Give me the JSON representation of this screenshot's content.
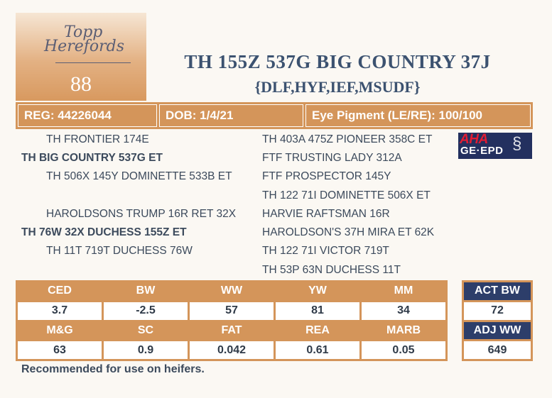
{
  "logo": {
    "line1": "Topp",
    "line2": "Herefords"
  },
  "lot_number": "88",
  "title": "TH 155Z 537G BIG COUNTRY 37J",
  "subtitle": "{DLF,HYF,IEF,MSUDF}",
  "info": {
    "reg": "REG: 44226044",
    "dob": "DOB: 1/4/21",
    "eye": "Eye Pigment (LE/RE): 100/100"
  },
  "pedigree": {
    "sire_side": {
      "sire_sire": "TH FRONTIER 174E",
      "sire": "TH BIG COUNTRY 537G ET",
      "sire_dam": "TH 506X 145Y DOMINETTE 533B ET"
    },
    "dam_side": {
      "dam_sire": "HAROLDSONS TRUMP 16R RET 32X",
      "dam": "TH 76W 32X DUCHESS 155Z ET",
      "dam_dam": "TH 11T 719T DUCHESS 76W"
    },
    "right_col": [
      "TH 403A 475Z PIONEER 358C ET",
      "FTF TRUSTING LADY 312A",
      "FTF PROSPECTOR 145Y",
      "TH 122 71I DOMINETTE 506X ET",
      "HARVIE RAFTSMAN 16R",
      "HAROLDSON'S 37H MIRA ET 62K",
      "TH 122 71I VICTOR 719T",
      "TH 53P 63N DUCHESS 11T"
    ]
  },
  "aha_logo": {
    "top": "AHA",
    "bottom": "GE·EPD"
  },
  "epd": {
    "row1_headers": [
      "CED",
      "BW",
      "WW",
      "YW",
      "MM"
    ],
    "row1_values": [
      "3.7",
      "-2.5",
      "57",
      "81",
      "34"
    ],
    "row2_headers": [
      "M&G",
      "SC",
      "FAT",
      "REA",
      "MARB"
    ],
    "row2_values": [
      "63",
      "0.9",
      "0.042",
      "0.61",
      "0.05"
    ]
  },
  "weights": {
    "act_bw_label": "ACT BW",
    "act_bw_value": "72",
    "adj_ww_label": "ADJ WW",
    "adj_ww_value": "649"
  },
  "footnote": "Recommended for use on heifers.",
  "colors": {
    "accent": "#d4955a",
    "navy": "#2d3e6a",
    "title": "#3c5270"
  }
}
